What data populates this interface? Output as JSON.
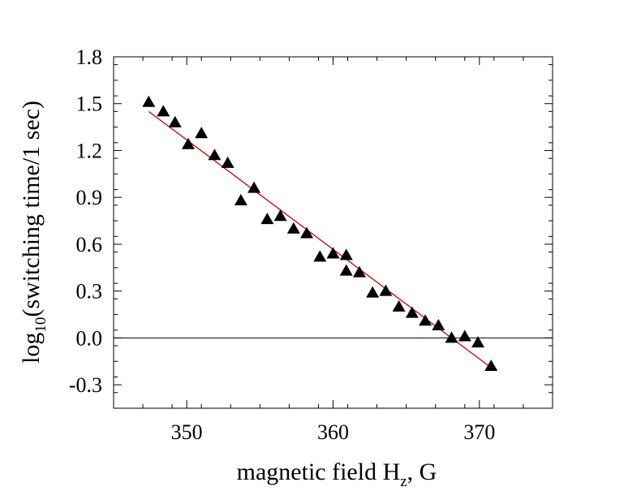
{
  "chart_data": {
    "type": "scatter",
    "title": "",
    "xlabel": {
      "main": "magnetic field H",
      "sub": "z",
      "tail": ", G"
    },
    "ylabel": {
      "pre": "log",
      "sub": "10",
      "post": "(switching time/1 sec)"
    },
    "xlim": [
      345,
      375
    ],
    "ylim": [
      -0.45,
      1.8
    ],
    "x_ticks": [
      350,
      360,
      370
    ],
    "x_tick_labels": [
      "350",
      "360",
      "370"
    ],
    "y_ticks": [
      -0.3,
      0.0,
      0.3,
      0.6,
      0.9,
      1.2,
      1.5,
      1.8
    ],
    "y_tick_labels": [
      "-0.3",
      "0.0",
      "0.3",
      "0.6",
      "0.9",
      "1.2",
      "1.5",
      "1.8"
    ],
    "x_minor_step": 2,
    "y_minor_step": 0.1,
    "grid": false,
    "reference_line_y": 0.0,
    "series": [
      {
        "marker": "triangle",
        "color": "#000000",
        "points": [
          {
            "x": 347.4,
            "y": 1.51
          },
          {
            "x": 348.4,
            "y": 1.45
          },
          {
            "x": 349.2,
            "y": 1.38
          },
          {
            "x": 350.1,
            "y": 1.24
          },
          {
            "x": 351.0,
            "y": 1.31
          },
          {
            "x": 351.9,
            "y": 1.17
          },
          {
            "x": 352.8,
            "y": 1.12
          },
          {
            "x": 353.7,
            "y": 0.88
          },
          {
            "x": 354.6,
            "y": 0.96
          },
          {
            "x": 355.5,
            "y": 0.76
          },
          {
            "x": 356.4,
            "y": 0.78
          },
          {
            "x": 357.3,
            "y": 0.7
          },
          {
            "x": 358.2,
            "y": 0.67
          },
          {
            "x": 359.1,
            "y": 0.52
          },
          {
            "x": 360.0,
            "y": 0.54
          },
          {
            "x": 360.9,
            "y": 0.53
          },
          {
            "x": 360.9,
            "y": 0.43
          },
          {
            "x": 361.8,
            "y": 0.42
          },
          {
            "x": 362.7,
            "y": 0.29
          },
          {
            "x": 363.6,
            "y": 0.3
          },
          {
            "x": 364.5,
            "y": 0.2
          },
          {
            "x": 365.4,
            "y": 0.16
          },
          {
            "x": 366.3,
            "y": 0.11
          },
          {
            "x": 367.2,
            "y": 0.08
          },
          {
            "x": 368.1,
            "y": 0.0
          },
          {
            "x": 369.0,
            "y": 0.01
          },
          {
            "x": 369.9,
            "y": -0.03
          },
          {
            "x": 370.8,
            "y": -0.18
          }
        ]
      }
    ],
    "fit_line": {
      "color": "#cc0000",
      "x": [
        347.4,
        370.8
      ],
      "y": [
        1.45,
        -0.19
      ]
    }
  }
}
